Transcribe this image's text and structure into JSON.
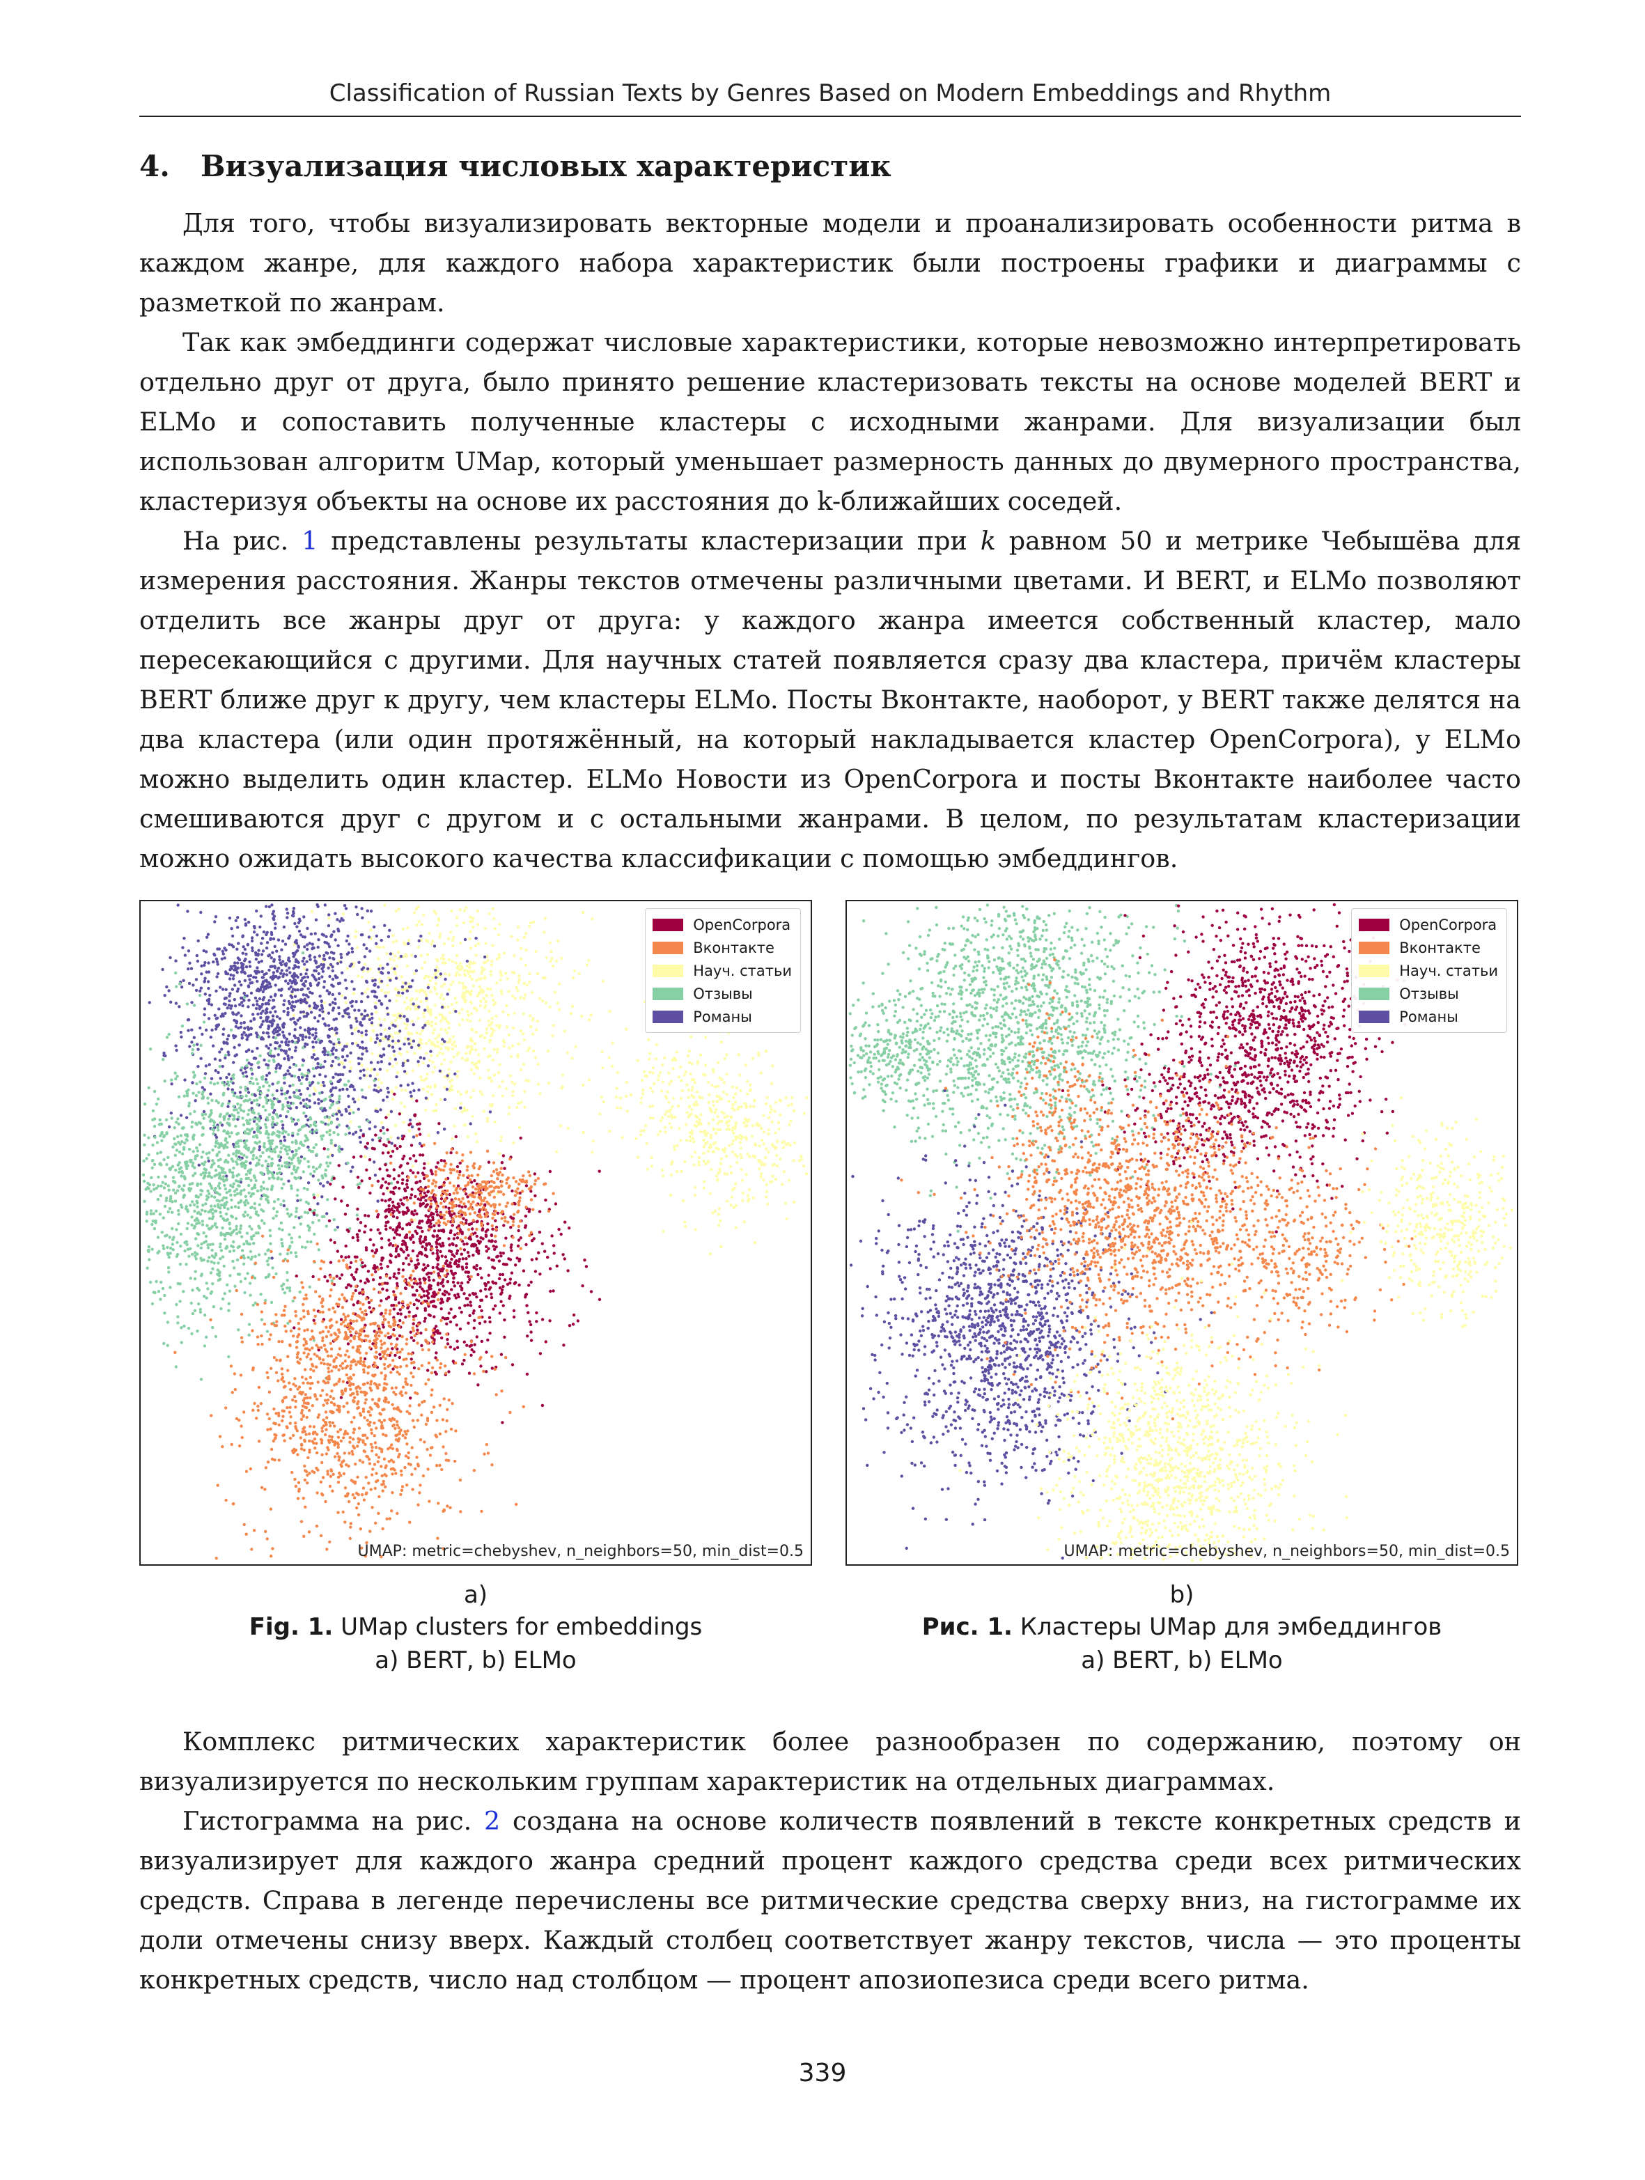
{
  "header": {
    "running_title": "Classification of Russian Texts by Genres Based on Modern Embeddings and Rhythm"
  },
  "section": {
    "number": "4.",
    "title": "Визуализация числовых характеристик"
  },
  "paragraphs_top": [
    "Для того, чтобы визуализировать векторные модели и проанализировать особенности ритма в каждом жанре, для каждого набора характеристик были построены графики и диаграммы с разметкой по жанрам.",
    "Так как эмбеддинги содержат числовые характеристики, которые невозможно интерпретировать отдельно друг от друга, было принято решение кластеризовать тексты на основе моделей BERT и ELMo и сопоставить полученные кластеры с исходными жанрами. Для визуализации был использован алгоритм UMap, который уменьшает размерность данных до двумерного пространства, кластеризуя объекты на основе их расстояния до k-ближайших соседей."
  ],
  "paragraph3": {
    "p1": "На рис. ",
    "ref": "1",
    "p2": " представлены результаты кластеризации при ",
    "k": "k",
    "p3": " равном 50 и метрике Чебышёва для измерения расстояния. Жанры текстов отмечены различными цветами. И BERT, и ELMo позволяют отделить все жанры друг от друга: у каждого жанра имеется собственный кластер, мало пересекающийся с другими. Для научных статей появляется сразу два кластера, причём кластеры BERT ближе друг к другу, чем кластеры ELMo. Посты Вконтакте, наоборот, у BERT также делятся на два кластера (или один протяжённый, на который накладывается кластер OpenCorpora), у ELMo можно выделить один кластер. ELMo Новости из OpenCorpora и посты Вконтакте наиболее часто смешиваются друг с другом и с остальными жанрами. В целом, по результатам кластеризации можно ожидать высокого качества классификации с помощью эмбеддингов."
  },
  "figure": {
    "legend": [
      {
        "label": "OpenCorpora",
        "color": "#9e0142"
      },
      {
        "label": "Вконтакте",
        "color": "#f4874b"
      },
      {
        "label": "Науч. статьи",
        "color": "#fefca8"
      },
      {
        "label": "Отзывы",
        "color": "#87cfa4"
      },
      {
        "label": "Романы",
        "color": "#5e4fa2"
      }
    ],
    "umap_note": "UMAP: metric=chebyshev, n_neighbors=50, min_dist=0.5",
    "left_label": "a)",
    "right_label": "b)",
    "caption_en": {
      "bold": "Fig. 1.",
      "text": " UMap clusters for embeddings",
      "line2": "a) BERT, b) ELMo"
    },
    "caption_ru": {
      "bold": "Рис. 1.",
      "text": " Кластеры UMap для эмбеддингов",
      "line2": "a) BERT, b) ELMo"
    }
  },
  "paragraph4": "Комплекс ритмических характеристик более разнообразен по содержанию, поэтому он визуализируется по нескольким группам характеристик на отдельных диаграммах.",
  "paragraph5": {
    "p1": "Гистограмма на рис. ",
    "ref": "2",
    "p2": " создана на основе количеств появлений в тексте конкретных средств и визуализирует для каждого жанра средний процент каждого средства среди всех ритмических средств. Справа в легенде перечислены все ритмические средства сверху вниз, на гистограмме их доли отмечены снизу вверх. Каждый столбец соответствует жанру текстов, числа — это проценты конкретных средств, число над столбцом — процент апозиопезиса среди всего ритма."
  },
  "page_number": "339"
}
